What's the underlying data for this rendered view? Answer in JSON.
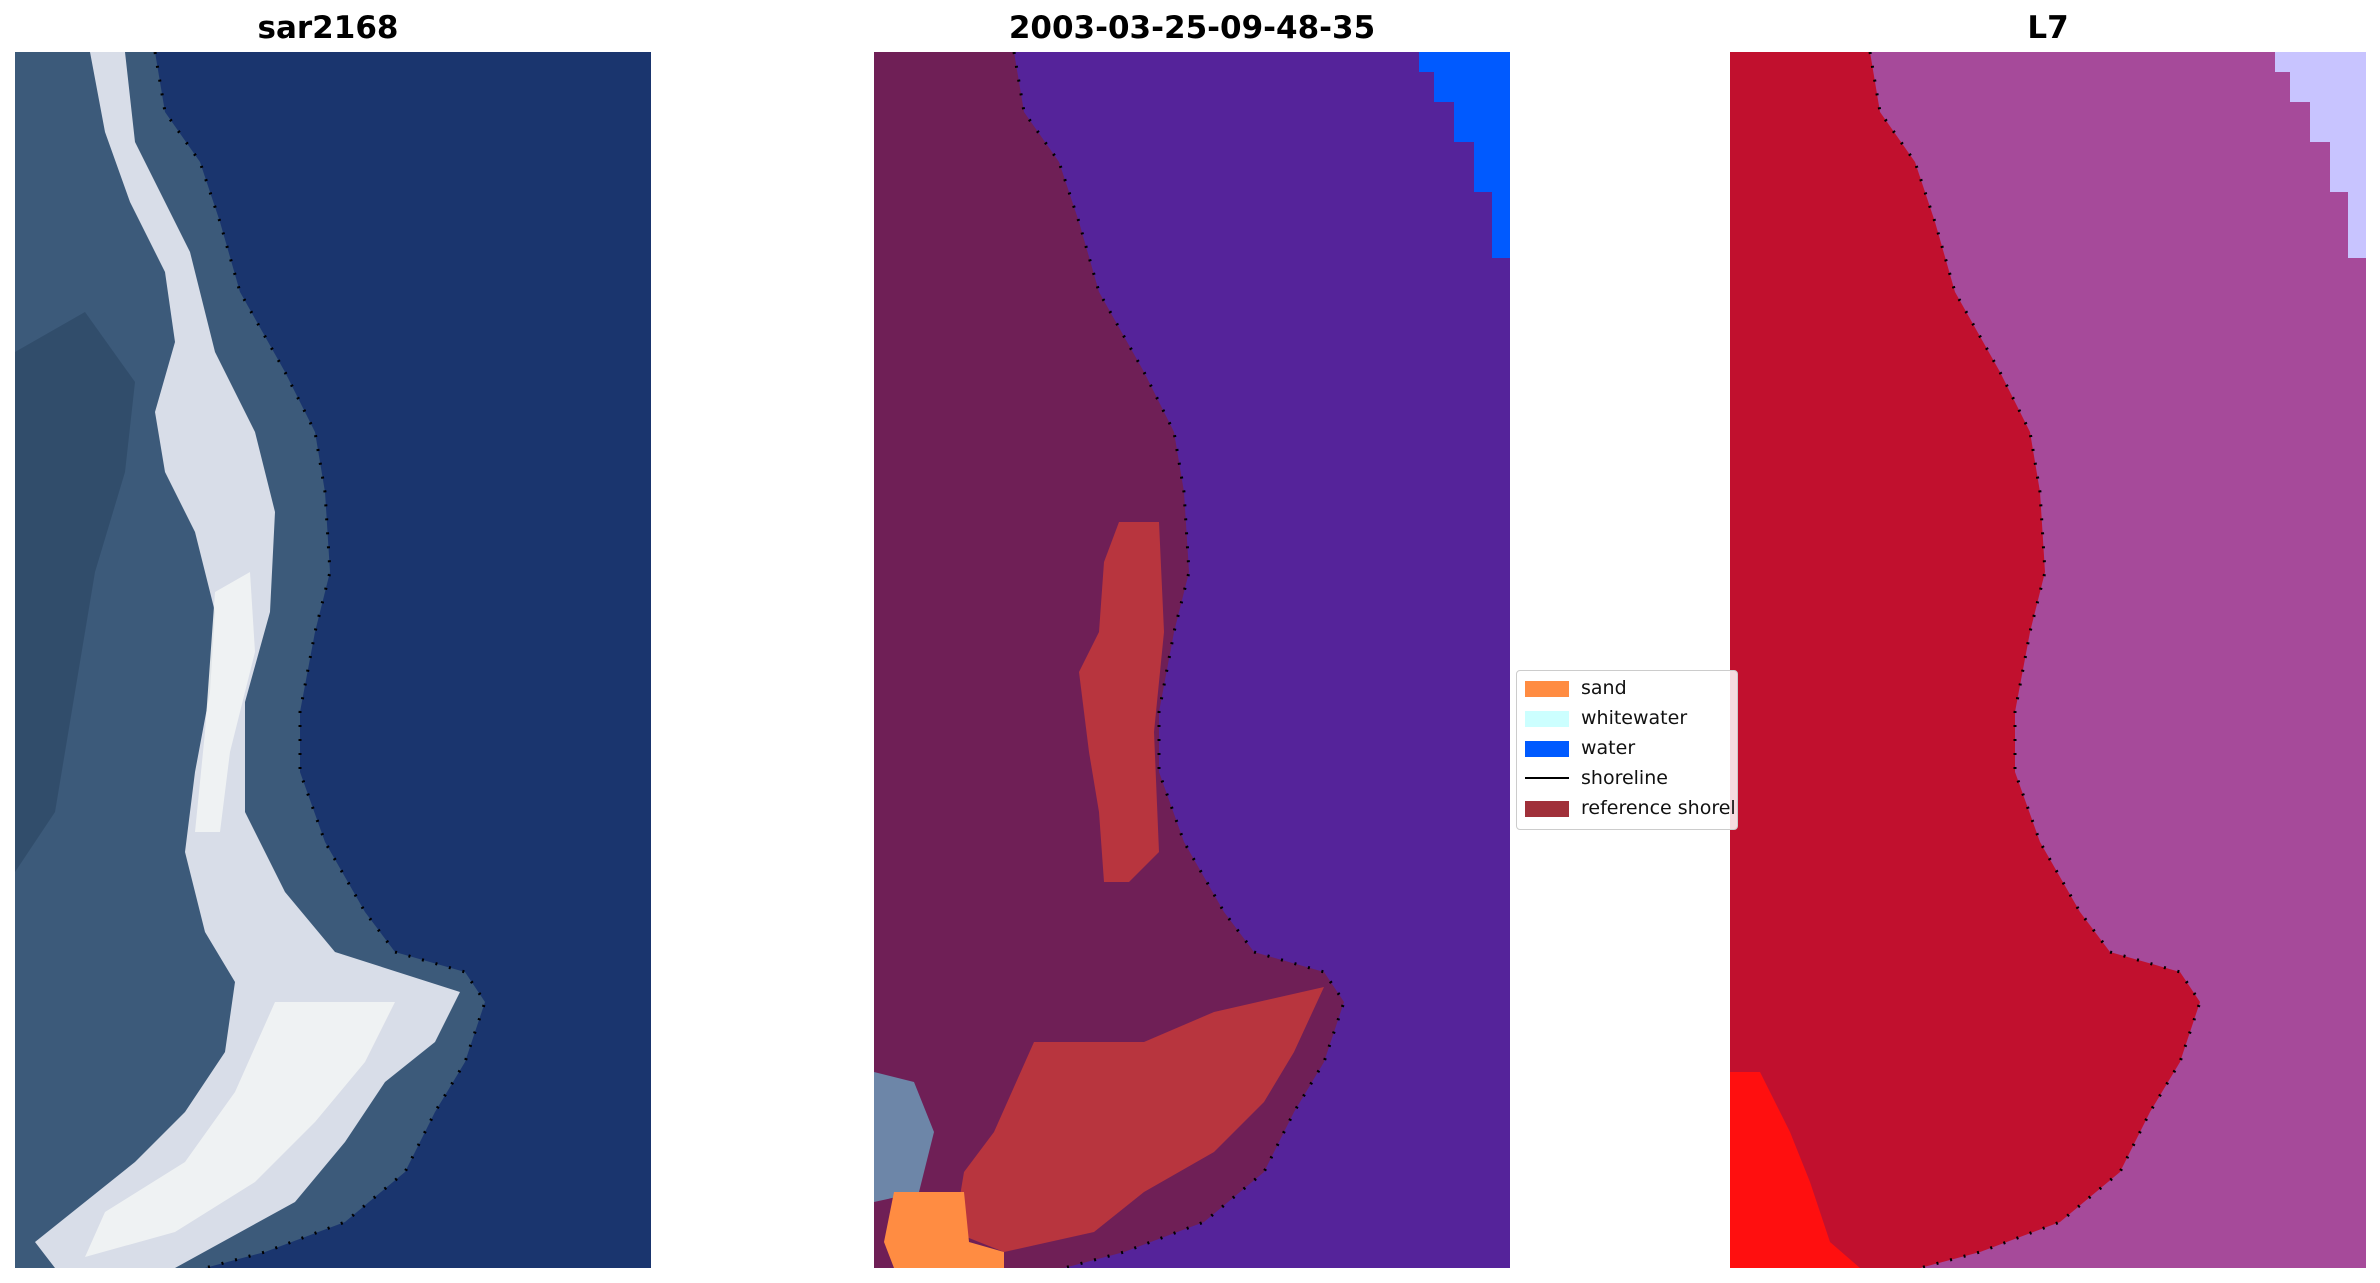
{
  "panels": [
    {
      "title": "sar2168"
    },
    {
      "title": "2003-03-25-09-48-35"
    },
    {
      "title": "L7"
    }
  ],
  "legend": {
    "items": [
      {
        "label": "sand",
        "color": "#ff8c42",
        "kind": "patch"
      },
      {
        "label": "whitewater",
        "color": "#ccffff",
        "kind": "patch"
      },
      {
        "label": "water",
        "color": "#005aff",
        "kind": "patch"
      },
      {
        "label": "shoreline",
        "color": "#000000",
        "kind": "line"
      },
      {
        "label": "reference shoreline",
        "color": "#a0303a",
        "kind": "patch"
      }
    ]
  },
  "colors": {
    "rgb_ocean": "#1a356e",
    "rgb_land": "#3c5a7a",
    "rgb_surf": "#d8dde8",
    "class_water_deep": "#55239a",
    "class_land": "#6f1f56",
    "class_reference": "#b8353e",
    "class_sand": "#ff8c42",
    "class_greyland": "#6d86a8",
    "class_water_bright": "#005aff",
    "swir_land": "#c1102e",
    "swir_water": "#a64a9a",
    "swir_red": "#ff0f0f",
    "swir_corner": "#c8c4ff"
  }
}
